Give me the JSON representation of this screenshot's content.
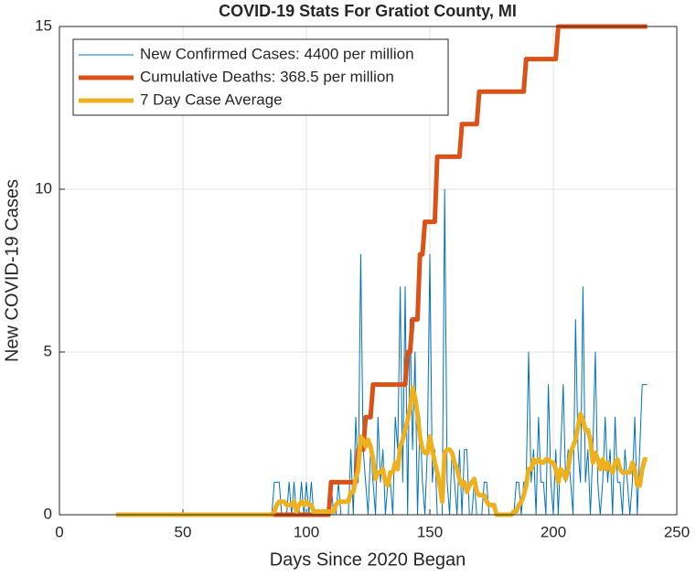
{
  "chart_data": {
    "type": "line",
    "title": "COVID-19 Stats For Gratiot County, MI",
    "xlabel": "Days Since 2020 Began",
    "ylabel": "New COVID-19 Cases",
    "xlim": [
      0,
      250
    ],
    "xticks": [
      0,
      50,
      100,
      150,
      200,
      250
    ],
    "ylim": [
      0,
      15
    ],
    "yticks": [
      0,
      5,
      10,
      15
    ],
    "grid": true,
    "legend": "upper left",
    "x": [
      23,
      24,
      25,
      26,
      27,
      28,
      29,
      30,
      31,
      32,
      33,
      34,
      35,
      36,
      37,
      38,
      39,
      40,
      41,
      42,
      43,
      44,
      45,
      46,
      47,
      48,
      49,
      50,
      51,
      52,
      53,
      54,
      55,
      56,
      57,
      58,
      59,
      60,
      61,
      62,
      63,
      64,
      65,
      66,
      67,
      68,
      69,
      70,
      71,
      72,
      73,
      74,
      75,
      76,
      77,
      78,
      79,
      80,
      81,
      82,
      83,
      84,
      85,
      86,
      87,
      88,
      89,
      90,
      91,
      92,
      93,
      94,
      95,
      96,
      97,
      98,
      99,
      100,
      101,
      102,
      103,
      104,
      105,
      106,
      107,
      108,
      109,
      110,
      111,
      112,
      113,
      114,
      115,
      116,
      117,
      118,
      119,
      120,
      121,
      122,
      123,
      124,
      125,
      126,
      127,
      128,
      129,
      130,
      131,
      132,
      133,
      134,
      135,
      136,
      137,
      138,
      139,
      140,
      141,
      142,
      143,
      144,
      145,
      146,
      147,
      148,
      149,
      150,
      151,
      152,
      153,
      154,
      155,
      156,
      157,
      158,
      159,
      160,
      161,
      162,
      163,
      164,
      165,
      166,
      167,
      168,
      169,
      170,
      171,
      172,
      173,
      174,
      175,
      176,
      177,
      178,
      179,
      180,
      181,
      182,
      183,
      184,
      185,
      186,
      187,
      188,
      189,
      190,
      191,
      192,
      193,
      194,
      195,
      196,
      197,
      198,
      199,
      200,
      201,
      202,
      203,
      204,
      205,
      206,
      207,
      208,
      209,
      210,
      211,
      212,
      213,
      214,
      215,
      216,
      217,
      218,
      219,
      220,
      221,
      222,
      223,
      224,
      225,
      226,
      227,
      228,
      229,
      230,
      231,
      232,
      233,
      234,
      235,
      236,
      237,
      238
    ],
    "series": [
      {
        "name": "New Confirmed Cases: 4400 per million",
        "color": "#0072bd",
        "width": 1,
        "values": [
          0,
          0,
          0,
          0,
          0,
          0,
          0,
          0,
          0,
          0,
          0,
          0,
          0,
          0,
          0,
          0,
          0,
          0,
          0,
          0,
          0,
          0,
          0,
          0,
          0,
          0,
          0,
          0,
          0,
          0,
          0,
          0,
          0,
          0,
          0,
          0,
          0,
          0,
          0,
          0,
          0,
          0,
          0,
          0,
          0,
          0,
          0,
          0,
          0,
          0,
          0,
          0,
          0,
          0,
          0,
          0,
          0,
          0,
          0,
          0,
          0,
          0,
          0,
          0,
          1,
          1,
          1,
          0,
          0,
          0,
          1,
          0,
          1,
          0,
          0,
          1,
          0,
          1,
          0,
          1,
          0,
          0,
          0,
          0,
          0,
          0,
          0,
          1,
          0,
          0,
          1,
          0,
          0,
          0,
          0,
          2,
          0,
          3,
          1,
          8,
          2,
          1,
          0,
          2,
          1,
          0,
          3,
          1,
          2,
          0,
          1,
          1,
          0,
          3,
          2,
          7,
          1,
          7,
          0,
          6,
          2,
          5,
          0,
          3,
          1,
          0,
          2,
          8,
          1,
          2,
          0,
          0,
          0,
          10,
          1,
          0,
          2,
          1,
          0,
          2,
          0,
          2,
          2,
          0,
          0,
          1,
          0,
          0,
          0,
          1,
          1,
          0,
          0,
          0,
          0,
          0,
          0,
          0,
          0,
          0,
          0,
          0,
          1,
          1,
          0,
          1,
          1,
          5,
          1,
          2,
          0,
          3,
          1,
          1,
          0,
          4,
          1,
          0,
          2,
          0,
          2,
          4,
          1,
          2,
          1,
          0,
          6,
          2,
          1,
          7,
          1,
          2,
          0,
          2,
          5,
          1,
          0,
          1,
          3,
          1,
          2,
          0,
          3,
          1,
          1,
          0,
          2,
          1,
          0,
          1,
          3,
          0,
          2,
          4,
          4,
          4
        ]
      },
      {
        "name": "Cumulative Deaths: 368.5 per million",
        "color": "#d95319",
        "width": 5,
        "values": [
          0,
          0,
          0,
          0,
          0,
          0,
          0,
          0,
          0,
          0,
          0,
          0,
          0,
          0,
          0,
          0,
          0,
          0,
          0,
          0,
          0,
          0,
          0,
          0,
          0,
          0,
          0,
          0,
          0,
          0,
          0,
          0,
          0,
          0,
          0,
          0,
          0,
          0,
          0,
          0,
          0,
          0,
          0,
          0,
          0,
          0,
          0,
          0,
          0,
          0,
          0,
          0,
          0,
          0,
          0,
          0,
          0,
          0,
          0,
          0,
          0,
          0,
          0,
          0,
          0,
          0,
          0,
          0,
          0,
          0,
          0,
          0,
          0,
          0,
          0,
          0,
          0,
          0,
          0,
          0,
          0,
          0,
          0,
          0,
          0,
          0,
          0,
          1,
          1,
          1,
          1,
          1,
          1,
          1,
          1,
          1,
          1,
          1,
          2,
          2,
          2,
          3,
          3,
          3,
          4,
          4,
          4,
          4,
          4,
          4,
          4,
          4,
          4,
          4,
          4,
          4,
          4,
          4,
          5,
          5,
          6,
          6,
          6,
          8,
          8,
          9,
          9,
          9,
          9,
          9,
          11,
          11,
          11,
          11,
          11,
          11,
          11,
          11,
          11,
          11,
          12,
          12,
          12,
          12,
          12,
          12,
          12,
          13,
          13,
          13,
          13,
          13,
          13,
          13,
          13,
          13,
          13,
          13,
          13,
          13,
          13,
          13,
          13,
          13,
          13,
          13,
          14,
          14,
          14,
          14,
          14,
          14,
          14,
          14,
          14,
          14,
          14,
          14,
          14,
          15,
          15,
          15,
          15,
          15,
          15,
          15,
          15,
          15,
          15,
          15,
          15,
          15,
          15,
          15,
          15,
          15,
          15,
          15,
          15,
          15,
          15,
          15,
          15,
          15,
          15,
          15,
          15,
          15,
          15,
          15,
          15,
          15,
          15,
          15,
          15,
          15
        ]
      },
      {
        "name": "7 Day Case Average",
        "color": "#edb120",
        "width": 5,
        "values": [
          0,
          0,
          0,
          0,
          0,
          0,
          0,
          0,
          0,
          0,
          0,
          0,
          0,
          0,
          0,
          0,
          0,
          0,
          0,
          0,
          0,
          0,
          0,
          0,
          0,
          0,
          0,
          0,
          0,
          0,
          0,
          0,
          0,
          0,
          0,
          0,
          0,
          0,
          0,
          0,
          0,
          0,
          0,
          0,
          0,
          0,
          0,
          0,
          0,
          0,
          0,
          0,
          0,
          0,
          0,
          0,
          0,
          0,
          0,
          0,
          0,
          0,
          0,
          0,
          0.1,
          0.3,
          0.4,
          0.4,
          0.4,
          0.3,
          0.3,
          0.3,
          0.4,
          0.1,
          0.3,
          0.4,
          0.3,
          0.4,
          0.3,
          0.3,
          0.1,
          0.1,
          0.1,
          0.1,
          0.1,
          0.1,
          0.1,
          0.1,
          0.1,
          0.3,
          0.4,
          0.4,
          0.4,
          0.4,
          0.4,
          0.7,
          0.7,
          1.1,
          1.4,
          2.4,
          2.3,
          2.1,
          2.3,
          2.1,
          1.7,
          1.1,
          1.3,
          1.3,
          1.4,
          1,
          0.9,
          1.3,
          1.3,
          1.6,
          1.4,
          2.1,
          2.3,
          2.6,
          2.9,
          3.3,
          3.9,
          3.6,
          3.1,
          2.4,
          2,
          1.9,
          1.9,
          2.4,
          2,
          1.6,
          1.3,
          0.9,
          0.4,
          1.9,
          2,
          2,
          1.9,
          1.6,
          1.4,
          1.1,
          0.9,
          1,
          0.7,
          0.9,
          1,
          1.1,
          0.7,
          0.6,
          0.6,
          0.6,
          0.4,
          0.3,
          0.3,
          0.3,
          0,
          0,
          0,
          0,
          0,
          0,
          0,
          0.1,
          0.1,
          0.3,
          0.4,
          0.6,
          0.9,
          1.4,
          1.4,
          1.7,
          1.6,
          1.7,
          1.6,
          1.6,
          1.7,
          1.7,
          1.6,
          1.6,
          1.4,
          1,
          1.4,
          1.3,
          1.1,
          1.4,
          1.9,
          2.1,
          2.3,
          2.7,
          3.1,
          2.9,
          2.6,
          2.6,
          2.3,
          1.6,
          1.9,
          1.7,
          1.4,
          1.7,
          1.4,
          1.6,
          1.4,
          1.3,
          1.6,
          1.7,
          1.4,
          1.3,
          1.3,
          1.3,
          1.3,
          1.6,
          1.4,
          0.9,
          0.9,
          1.4,
          1.7,
          1.7
        ]
      }
    ]
  }
}
